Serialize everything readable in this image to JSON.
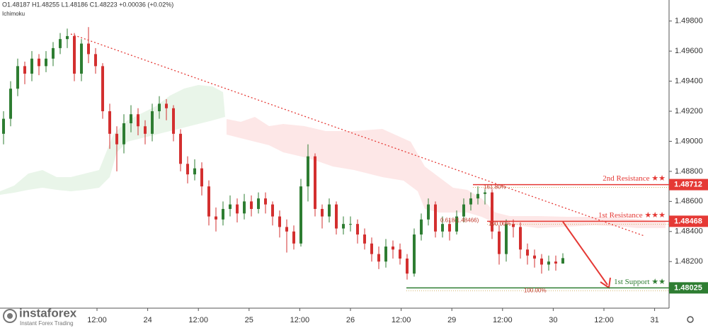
{
  "chart_data": {
    "type": "candlestick",
    "header": "O1.48187 H1.48255 L1.48186 C1.48223 +0.00036 (+0.02%)",
    "indicator": "Ichimoku",
    "ylim": [
      1.4789,
      1.4994
    ],
    "yticks": [
      {
        "value": 1.498,
        "label": "1.49800"
      },
      {
        "value": 1.496,
        "label": "1.49600"
      },
      {
        "value": 1.494,
        "label": "1.49400"
      },
      {
        "value": 1.492,
        "label": "1.49200"
      },
      {
        "value": 1.49,
        "label": "1.49000"
      },
      {
        "value": 1.488,
        "label": "1.48800"
      },
      {
        "value": 1.486,
        "label": "1.48600"
      },
      {
        "value": 1.484,
        "label": "1.48400"
      },
      {
        "value": 1.482,
        "label": "1.48200"
      }
    ],
    "xticks": [
      "12:00",
      "24",
      "12:00",
      "25",
      "12:00",
      "26",
      "12:00",
      "29",
      "12:00",
      "30",
      "12:00",
      "31"
    ],
    "up_color": "#2e7d32",
    "down_color": "#d32f2f",
    "candles": [
      [
        1.4905,
        1.492,
        1.4898,
        1.4915
      ],
      [
        1.4915,
        1.494,
        1.491,
        1.4935
      ],
      [
        1.4935,
        1.4955,
        1.493,
        1.495
      ],
      [
        1.495,
        1.4953,
        1.4938,
        1.4945
      ],
      [
        1.4945,
        1.496,
        1.494,
        1.4955
      ],
      [
        1.4955,
        1.4958,
        1.4944,
        1.495
      ],
      [
        1.495,
        1.496,
        1.4946,
        1.4955
      ],
      [
        1.4955,
        1.4966,
        1.495,
        1.4962
      ],
      [
        1.4962,
        1.4972,
        1.4958,
        1.4968
      ],
      [
        1.4968,
        1.4975,
        1.4962,
        1.497
      ],
      [
        1.497,
        1.4972,
        1.494,
        1.4945
      ],
      [
        1.4945,
        1.4968,
        1.494,
        1.4965
      ],
      [
        1.4965,
        1.4976,
        1.4952,
        1.4958
      ],
      [
        1.4958,
        1.4962,
        1.4945,
        1.495
      ],
      [
        1.495,
        1.4952,
        1.4915,
        1.492
      ],
      [
        1.492,
        1.4925,
        1.4895,
        1.4905
      ],
      [
        1.4905,
        1.491,
        1.488,
        1.4898
      ],
      [
        1.4898,
        1.4918,
        1.4892,
        1.4912
      ],
      [
        1.4912,
        1.4924,
        1.4906,
        1.4918
      ],
      [
        1.4918,
        1.4922,
        1.4904,
        1.491
      ],
      [
        1.491,
        1.4914,
        1.4898,
        1.4905
      ],
      [
        1.4905,
        1.4925,
        1.49,
        1.492
      ],
      [
        1.492,
        1.493,
        1.4915,
        1.4925
      ],
      [
        1.4925,
        1.4928,
        1.4914,
        1.4922
      ],
      [
        1.4922,
        1.4924,
        1.49,
        1.4905
      ],
      [
        1.4905,
        1.4908,
        1.488,
        1.4885
      ],
      [
        1.4885,
        1.489,
        1.4872,
        1.4878
      ],
      [
        1.4878,
        1.4888,
        1.4874,
        1.4882
      ],
      [
        1.4882,
        1.4886,
        1.4864,
        1.487
      ],
      [
        1.487,
        1.4874,
        1.4844,
        1.485
      ],
      [
        1.485,
        1.4856,
        1.484,
        1.4848
      ],
      [
        1.4848,
        1.486,
        1.4844,
        1.4855
      ],
      [
        1.4855,
        1.4864,
        1.485,
        1.4858
      ],
      [
        1.4858,
        1.4862,
        1.4846,
        1.4852
      ],
      [
        1.4852,
        1.4865,
        1.4848,
        1.486
      ],
      [
        1.486,
        1.4864,
        1.485,
        1.4855
      ],
      [
        1.4855,
        1.4866,
        1.4852,
        1.4862
      ],
      [
        1.4862,
        1.4866,
        1.4852,
        1.4858
      ],
      [
        1.4858,
        1.486,
        1.4844,
        1.485
      ],
      [
        1.485,
        1.4854,
        1.4836,
        1.4843
      ],
      [
        1.4843,
        1.4848,
        1.4826,
        1.484
      ],
      [
        1.484,
        1.4844,
        1.4828,
        1.4832
      ],
      [
        1.4832,
        1.4875,
        1.483,
        1.487
      ],
      [
        1.487,
        1.4898,
        1.486,
        1.489
      ],
      [
        1.489,
        1.4892,
        1.485,
        1.4855
      ],
      [
        1.4855,
        1.4858,
        1.4842,
        1.485
      ],
      [
        1.485,
        1.4862,
        1.4846,
        1.4858
      ],
      [
        1.4858,
        1.486,
        1.4838,
        1.4842
      ],
      [
        1.4842,
        1.485,
        1.4838,
        1.4845
      ],
      [
        1.4845,
        1.485,
        1.484,
        1.4845
      ],
      [
        1.4845,
        1.4848,
        1.4832,
        1.4838
      ],
      [
        1.4838,
        1.4842,
        1.4828,
        1.4832
      ],
      [
        1.4832,
        1.4836,
        1.482,
        1.4825
      ],
      [
        1.4825,
        1.483,
        1.4815,
        1.482
      ],
      [
        1.482,
        1.4835,
        1.4816,
        1.483
      ],
      [
        1.483,
        1.4834,
        1.4822,
        1.4828
      ],
      [
        1.4828,
        1.4832,
        1.4818,
        1.4822
      ],
      [
        1.4822,
        1.4825,
        1.4808,
        1.4812
      ],
      [
        1.4812,
        1.4842,
        1.481,
        1.4838
      ],
      [
        1.4838,
        1.4852,
        1.4834,
        1.4848
      ],
      [
        1.4848,
        1.4862,
        1.4844,
        1.4858
      ],
      [
        1.4858,
        1.486,
        1.4836,
        1.484
      ],
      [
        1.484,
        1.485,
        1.4836,
        1.4845
      ],
      [
        1.4845,
        1.4848,
        1.4834,
        1.484
      ],
      [
        1.484,
        1.4854,
        1.4838,
        1.485
      ],
      [
        1.485,
        1.4862,
        1.4846,
        1.4858
      ],
      [
        1.4858,
        1.4866,
        1.4854,
        1.4862
      ],
      [
        1.4862,
        1.487,
        1.4858,
        1.4865
      ],
      [
        1.4865,
        1.4868,
        1.4858,
        1.4866
      ],
      [
        1.4866,
        1.4868,
        1.4835,
        1.484
      ],
      [
        1.484,
        1.4844,
        1.4818,
        1.4825
      ],
      [
        1.4825,
        1.4848,
        1.482,
        1.4845
      ],
      [
        1.4845,
        1.4848,
        1.4836,
        1.4843
      ],
      [
        1.4843,
        1.4846,
        1.4822,
        1.4828
      ],
      [
        1.4828,
        1.4832,
        1.4818,
        1.4824
      ],
      [
        1.4824,
        1.4828,
        1.4816,
        1.4822
      ],
      [
        1.4822,
        1.4825,
        1.4812,
        1.4818
      ],
      [
        1.4818,
        1.4824,
        1.4814,
        1.482
      ],
      [
        1.482,
        1.4824,
        1.4814,
        1.48187
      ],
      [
        1.48187,
        1.48255,
        1.48186,
        1.48223
      ]
    ],
    "levels": [
      {
        "label": "2nd Resistance ★★",
        "value": 1.48712,
        "color": "#e53935",
        "fib": "161.80%"
      },
      {
        "label": "1st Resistance ★★★",
        "value": 1.48468,
        "color": "#e53935",
        "fib": "100.00%"
      },
      {
        "label": "1st Support ★★",
        "value": 1.48025,
        "color": "#2e7d32",
        "fib": "100.00%"
      }
    ],
    "fib_note": "0.618(1.48466)",
    "brand": "instaforex",
    "brand_tagline": "Instant Forex Trading"
  }
}
